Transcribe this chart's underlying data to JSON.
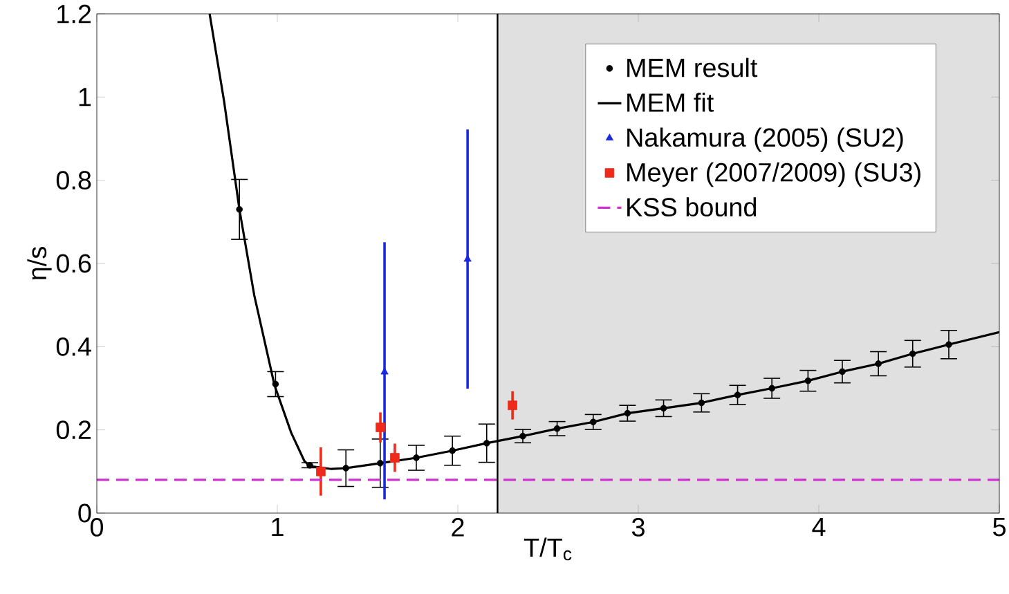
{
  "chart_data": {
    "type": "scatter",
    "xlabel": "T/T$_{c}$",
    "ylabel": "η/s",
    "xlim": [
      0,
      5
    ],
    "ylim": [
      0,
      1.2
    ],
    "xticks": [
      0,
      1,
      2,
      3,
      4,
      5
    ],
    "yticks": [
      0,
      0.2,
      0.4,
      0.6,
      0.8,
      1,
      1.2
    ],
    "grid": false,
    "legend": "top right",
    "bands": [
      {
        "axis": "x",
        "from": 2.22,
        "to": 5,
        "color": "#e0e0e0"
      }
    ],
    "ref_lines": [
      {
        "axis": "x",
        "value": 2.22,
        "color": "#000000"
      }
    ],
    "series": [
      {
        "name": "MEM result",
        "marker": "circle",
        "color": "#000000",
        "x": [
          0.79,
          0.99,
          1.18,
          1.38,
          1.57,
          1.77,
          1.97,
          2.16,
          2.36,
          2.55,
          2.75,
          2.94,
          3.14,
          3.35,
          3.55,
          3.74,
          3.94,
          4.13,
          4.33,
          4.52,
          4.72
        ],
        "values": [
          0.73,
          0.31,
          0.115,
          0.108,
          0.12,
          0.133,
          0.15,
          0.168,
          0.185,
          0.203,
          0.219,
          0.24,
          0.252,
          0.265,
          0.284,
          0.3,
          0.318,
          0.34,
          0.359,
          0.383,
          0.405
        ],
        "errors": [
          0.072,
          0.03,
          0.006,
          0.044,
          0.058,
          0.03,
          0.035,
          0.046,
          0.016,
          0.017,
          0.018,
          0.019,
          0.02,
          0.022,
          0.023,
          0.024,
          0.025,
          0.027,
          0.029,
          0.032,
          0.034
        ]
      },
      {
        "name": "MEM fit",
        "type": "line",
        "marker": "none",
        "line_style": "solid",
        "color": "#000000",
        "x": [
          0.625,
          0.705,
          0.79,
          0.872,
          0.984,
          1.077,
          1.15,
          1.18,
          1.3,
          1.38,
          1.57,
          1.77,
          1.97,
          2.16,
          2.36,
          2.55,
          2.75,
          2.94,
          3.14,
          3.35,
          3.55,
          3.74,
          3.94,
          4.13,
          4.33,
          4.52,
          4.72,
          5
        ],
        "values": [
          1.2,
          0.99,
          0.73,
          0.524,
          0.308,
          0.193,
          0.125,
          0.113,
          0.106,
          0.108,
          0.12,
          0.133,
          0.15,
          0.168,
          0.185,
          0.203,
          0.219,
          0.24,
          0.252,
          0.265,
          0.284,
          0.3,
          0.318,
          0.34,
          0.359,
          0.383,
          0.405,
          0.435
        ]
      },
      {
        "name": "Nakamura (2005) (SU2)",
        "marker": "triangle",
        "color": "#1a28e0",
        "x": [
          1.594,
          2.054
        ],
        "values": [
          0.339,
          0.61
        ],
        "errors": [
          [
            0.033,
            0.651
          ],
          [
            0.299,
            0.922
          ]
        ]
      },
      {
        "name": "Meyer (2007/2009) (SU3)",
        "marker": "square",
        "color": "#ee2a1a",
        "x": [
          1.241,
          1.571,
          1.651,
          2.303
        ],
        "values": [
          0.1,
          0.206,
          0.133,
          0.259
        ],
        "errors": [
          0.058,
          0.036,
          0.034,
          0.034
        ]
      },
      {
        "name": "KSS bound",
        "type": "line",
        "marker": "none",
        "line_style": "dashed",
        "color": "#cc33cc",
        "x": [
          0,
          5
        ],
        "values": [
          0.08,
          0.08
        ]
      }
    ]
  }
}
